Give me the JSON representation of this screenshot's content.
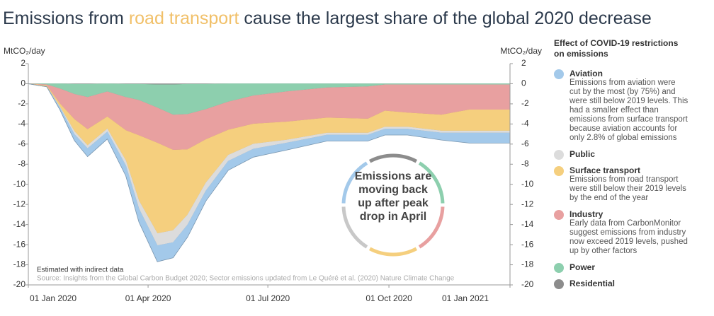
{
  "chart_data": {
    "type": "stacked_area",
    "title_parts": [
      "Emissions from",
      "road transport",
      "cause the largest share of the global 2020 decrease"
    ],
    "y_label": "MtCO₂/day",
    "y2_label": "MtCO₂/day",
    "legend_title": "Effect of COVID-19 restrictions on emissions",
    "annotation": "Emissions are moving back up after peak drop in April",
    "note": "Estimated with indirect data",
    "source": "Source: Insights from the Global Carbon Budget 2020; Sector emissions updated from Le Quéré et al. (2020) Nature Climate Change",
    "x": [
      "2020-01-01",
      "2020-01-15",
      "2020-01-25",
      "2020-02-05",
      "2020-02-15",
      "2020-03-01",
      "2020-03-15",
      "2020-03-25",
      "2020-04-08",
      "2020-04-20",
      "2020-05-01",
      "2020-05-15",
      "2020-06-01",
      "2020-06-20",
      "2020-07-15",
      "2020-08-15",
      "2020-09-15",
      "2020-09-28",
      "2020-10-15",
      "2020-11-10",
      "2020-12-01",
      "2021-01-01"
    ],
    "xlim": [
      "2020-01-01",
      "2021-01-01"
    ],
    "xticks": [
      {
        "value": "2020-01-01",
        "label": "01 Jan 2020"
      },
      {
        "value": "2020-04-01",
        "label": "01 Apr 2020"
      },
      {
        "value": "2020-07-01",
        "label": "01 Jul 2020"
      },
      {
        "value": "2020-10-01",
        "label": "01 Oct 2020"
      },
      {
        "value": "2021-01-01",
        "label": "01 Jan 2021"
      }
    ],
    "ylim": [
      -20,
      2
    ],
    "yticks": [
      2,
      0,
      -2,
      -4,
      -6,
      -8,
      -10,
      -12,
      -14,
      -16,
      -18,
      -20
    ],
    "y2lim": [
      -20,
      2
    ],
    "y2ticks": [
      2,
      0,
      -2,
      -4,
      -6,
      -8,
      -10,
      -12,
      -14,
      -16,
      -18,
      -20
    ],
    "series": [
      {
        "name": "Residential",
        "color": "#8c8c8c",
        "values": [
          0,
          0,
          0,
          -0.05,
          -0.05,
          0,
          -0.05,
          -0.05,
          -0.1,
          -0.1,
          -0.05,
          -0.05,
          0,
          0,
          0,
          0,
          0,
          0,
          0,
          0,
          0,
          0
        ]
      },
      {
        "name": "Power",
        "color": "#8dcfae",
        "values": [
          0,
          -0.1,
          -0.5,
          -1,
          -1.3,
          -0.8,
          -1.3,
          -1.6,
          -2.3,
          -3,
          -3,
          -2.5,
          -1.8,
          -1.2,
          -0.8,
          -0.4,
          -0.3,
          -0.1,
          -0.1,
          -0.1,
          -0.1,
          -0.1
        ],
        "description": ""
      },
      {
        "name": "Industry",
        "color": "#e8a0a0",
        "values": [
          0,
          -0.1,
          -1.5,
          -2.5,
          -3.2,
          -2.5,
          -3.3,
          -3.5,
          -3.5,
          -3.5,
          -3.5,
          -3,
          -2.8,
          -2.8,
          -3,
          -3,
          -3.2,
          -2.6,
          -2.8,
          -3,
          -2.5,
          -2.5
        ],
        "description": "Early data from CarbonMonitor suggest emissions from industry now exceed 2019 levels, pushed up by other factors"
      },
      {
        "name": "Surface transport",
        "color": "#f5cf7e",
        "values": [
          0,
          -0.1,
          -0.3,
          -1.2,
          -1.6,
          -1.2,
          -3,
          -6.5,
          -9,
          -8,
          -6.5,
          -4.3,
          -2.5,
          -2,
          -1.8,
          -1.5,
          -1.4,
          -1.6,
          -1.4,
          -1.6,
          -2.1,
          -2.1
        ],
        "description": "Emissions from road transport were still below their 2019 levels by the end of the year"
      },
      {
        "name": "Public",
        "color": "#dcdcdc",
        "values": [
          0,
          0,
          -0.1,
          -0.3,
          -0.3,
          -0.3,
          -0.5,
          -0.8,
          -1.2,
          -1.2,
          -1,
          -0.8,
          -0.6,
          -0.5,
          -0.3,
          -0.2,
          -0.2,
          -0.2,
          -0.2,
          -0.2,
          -0.2,
          -0.2
        ]
      },
      {
        "name": "Aviation",
        "color": "#a3c9ea",
        "values": [
          0,
          0,
          -0.2,
          -0.6,
          -0.8,
          -0.7,
          -1,
          -1.3,
          -1.6,
          -1.5,
          -1.2,
          -1,
          -0.9,
          -0.8,
          -0.7,
          -0.6,
          -0.6,
          -0.6,
          -0.6,
          -0.7,
          -1,
          -1
        ],
        "description": "Emissions from aviation were cut by the most (by 75%) and were still below 2019 levels. This had a smaller effect than emissions from surface transport because aviation accounts for only 2.8% of global emissions"
      }
    ]
  }
}
